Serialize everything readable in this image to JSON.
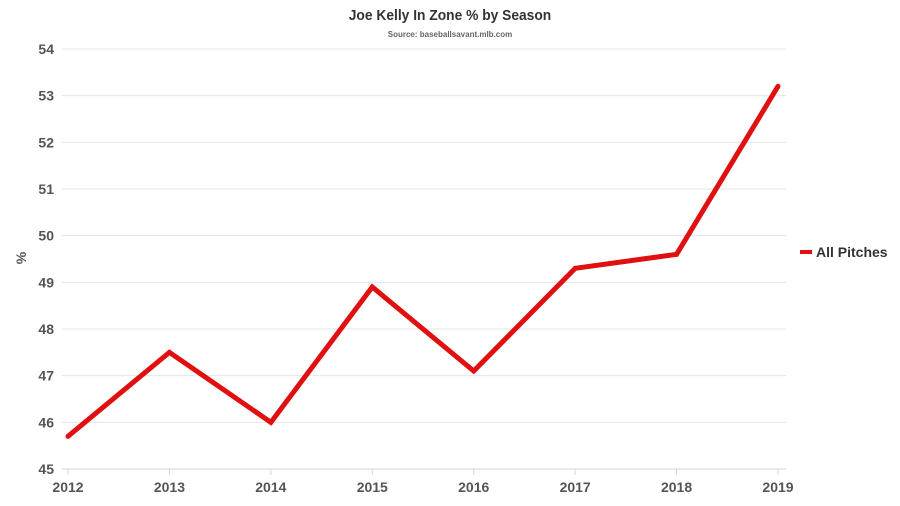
{
  "chart_data": {
    "type": "line",
    "title": "Joe Kelly In Zone % by Season",
    "subtitle": "Source: baseballsavant.mlb.com",
    "ylabel": "%",
    "xlabel": "",
    "categories": [
      "2012",
      "2013",
      "2014",
      "2015",
      "2016",
      "2017",
      "2018",
      "2019"
    ],
    "ylim": [
      45,
      54
    ],
    "yticks": [
      45,
      46,
      47,
      48,
      49,
      50,
      51,
      52,
      53,
      54
    ],
    "grid": true,
    "legend_position": "right",
    "series": [
      {
        "name": "All Pitches",
        "color": "#e01010",
        "values": [
          45.7,
          47.5,
          46.0,
          48.9,
          47.1,
          49.3,
          49.6,
          53.2
        ]
      }
    ]
  }
}
